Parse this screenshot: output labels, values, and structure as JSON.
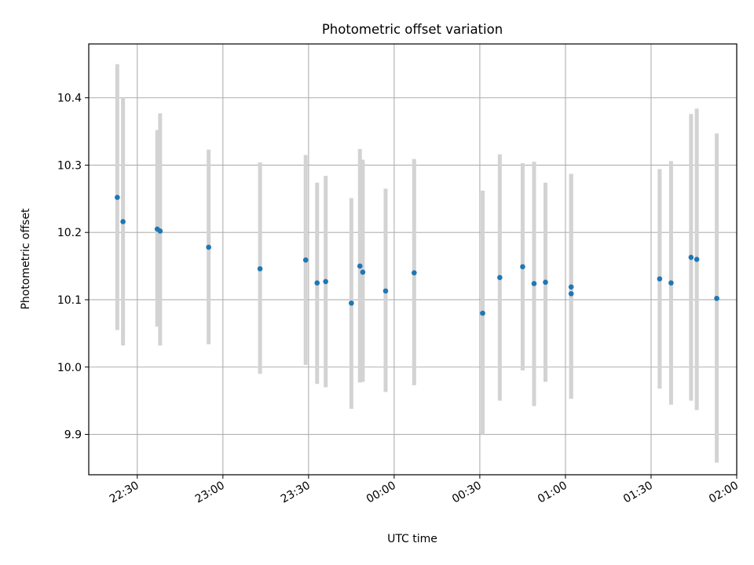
{
  "chart_data": {
    "type": "scatter",
    "title": "Photometric offset variation",
    "xlabel": "UTC time",
    "ylabel": "Photometric offset",
    "x_ticks": [
      "22:30",
      "23:00",
      "23:30",
      "00:00",
      "00:30",
      "01:00",
      "01:30",
      "02:00"
    ],
    "y_ticks": [
      "9.9",
      "10.0",
      "10.1",
      "10.2",
      "10.3",
      "10.4"
    ],
    "xlim": [
      "22:13",
      "02:00"
    ],
    "ylim": [
      9.84,
      10.48
    ],
    "grid": true,
    "series": [
      {
        "errorbar_color": "#d3d3d3",
        "marker_color": "#1f77b4",
        "points": [
          {
            "x": "22:23",
            "y": 10.252,
            "err_low": 10.055,
            "err_high": 10.45
          },
          {
            "x": "22:25",
            "y": 10.216,
            "err_low": 10.032,
            "err_high": 10.4
          },
          {
            "x": "22:37",
            "y": 10.205,
            "err_low": 10.06,
            "err_high": 10.352
          },
          {
            "x": "22:38",
            "y": 10.202,
            "err_low": 10.032,
            "err_high": 10.377
          },
          {
            "x": "22:55",
            "y": 10.178,
            "err_low": 10.034,
            "err_high": 10.323
          },
          {
            "x": "23:13",
            "y": 10.146,
            "err_low": 9.99,
            "err_high": 10.304
          },
          {
            "x": "23:29",
            "y": 10.159,
            "err_low": 10.003,
            "err_high": 10.315
          },
          {
            "x": "23:33",
            "y": 10.125,
            "err_low": 9.975,
            "err_high": 10.274
          },
          {
            "x": "23:36",
            "y": 10.127,
            "err_low": 9.97,
            "err_high": 10.284
          },
          {
            "x": "23:45",
            "y": 10.095,
            "err_low": 9.938,
            "err_high": 10.251
          },
          {
            "x": "23:48",
            "y": 10.15,
            "err_low": 9.977,
            "err_high": 10.324
          },
          {
            "x": "23:49",
            "y": 10.141,
            "err_low": 9.978,
            "err_high": 10.308
          },
          {
            "x": "23:57",
            "y": 10.113,
            "err_low": 9.963,
            "err_high": 10.265
          },
          {
            "x": "00:07",
            "y": 10.14,
            "err_low": 9.973,
            "err_high": 10.309
          },
          {
            "x": "00:31",
            "y": 10.08,
            "err_low": 9.9,
            "err_high": 10.262
          },
          {
            "x": "00:37",
            "y": 10.133,
            "err_low": 9.95,
            "err_high": 10.316
          },
          {
            "x": "00:45",
            "y": 10.149,
            "err_low": 9.995,
            "err_high": 10.303
          },
          {
            "x": "00:49",
            "y": 10.124,
            "err_low": 9.942,
            "err_high": 10.305
          },
          {
            "x": "00:53",
            "y": 10.126,
            "err_low": 9.978,
            "err_high": 10.274
          },
          {
            "x": "01:02",
            "y": 10.109,
            "err_low": 9.953,
            "err_high": 10.287
          },
          {
            "x": "01:02",
            "y": 10.119,
            "err_low": 9.953,
            "err_high": 10.287
          },
          {
            "x": "01:33",
            "y": 10.131,
            "err_low": 9.968,
            "err_high": 10.294
          },
          {
            "x": "01:37",
            "y": 10.125,
            "err_low": 9.944,
            "err_high": 10.306
          },
          {
            "x": "01:44",
            "y": 10.163,
            "err_low": 9.95,
            "err_high": 10.376
          },
          {
            "x": "01:46",
            "y": 10.16,
            "err_low": 9.936,
            "err_high": 10.384
          },
          {
            "x": "01:53",
            "y": 10.102,
            "err_low": 9.858,
            "err_high": 10.347
          }
        ]
      }
    ]
  }
}
